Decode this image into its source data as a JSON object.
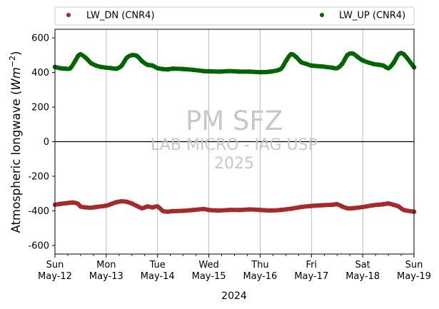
{
  "chart_data": {
    "type": "scatter",
    "ylabel_prefix": "Atmospheric longwave (",
    "ylabel_unit": "W",
    "ylabel_unit2": "m",
    "ylabel_sup": "−2",
    "ylabel_suffix": ")",
    "xlabel": "2024",
    "ylim": [
      -650,
      650
    ],
    "yticks": [
      -600,
      -400,
      -200,
      0,
      200,
      400,
      600
    ],
    "xlim": [
      "2024-05-12",
      "2024-05-19"
    ],
    "xticks": [
      {
        "day": "Sun",
        "date": "May-12"
      },
      {
        "day": "Mon",
        "date": "May-13"
      },
      {
        "day": "Tue",
        "date": "May-14"
      },
      {
        "day": "Wed",
        "date": "May-15"
      },
      {
        "day": "Thu",
        "date": "May-16"
      },
      {
        "day": "Fri",
        "date": "May-17"
      },
      {
        "day": "Sat",
        "date": "May-18"
      },
      {
        "day": "Sun",
        "date": "May-19"
      }
    ],
    "grid": "vertical",
    "zero_line": true,
    "legend_position": "top-outside",
    "watermark": [
      "PM SFZ",
      "LAB MICRO - IAG USP",
      "2025"
    ],
    "series": [
      {
        "name": "LW_DN (CNR4)",
        "color": "#a52a2a",
        "x": [
          0,
          0.1,
          0.25,
          0.35,
          0.45,
          0.5,
          0.6,
          0.7,
          0.8,
          1.0,
          1.1,
          1.2,
          1.3,
          1.4,
          1.5,
          1.6,
          1.7,
          1.8,
          1.9,
          2.0,
          2.1,
          2.2,
          2.3,
          2.5,
          2.7,
          2.9,
          3.0,
          3.2,
          3.4,
          3.6,
          3.8,
          4.0,
          4.2,
          4.4,
          4.6,
          4.8,
          5.0,
          5.2,
          5.4,
          5.5,
          5.6,
          5.7,
          5.8,
          6.0,
          6.2,
          6.3,
          6.4,
          6.5,
          6.6,
          6.7,
          6.8,
          7.0
        ],
        "y": [
          -365,
          -360,
          -355,
          -352,
          -360,
          -375,
          -380,
          -382,
          -378,
          -370,
          -360,
          -350,
          -345,
          -348,
          -358,
          -372,
          -385,
          -375,
          -380,
          -375,
          -400,
          -405,
          -402,
          -400,
          -395,
          -390,
          -395,
          -398,
          -395,
          -395,
          -392,
          -395,
          -398,
          -395,
          -388,
          -378,
          -372,
          -368,
          -365,
          -362,
          -375,
          -385,
          -385,
          -378,
          -368,
          -365,
          -362,
          -358,
          -365,
          -375,
          -395,
          -405
        ]
      },
      {
        "name": "LW_UP (CNR4)",
        "color": "#006400",
        "x": [
          0,
          0.1,
          0.2,
          0.3,
          0.4,
          0.45,
          0.5,
          0.6,
          0.7,
          0.8,
          0.9,
          1.0,
          1.1,
          1.2,
          1.3,
          1.4,
          1.5,
          1.6,
          1.7,
          1.8,
          1.9,
          2.0,
          2.1,
          2.2,
          2.3,
          2.5,
          2.7,
          2.9,
          3.0,
          3.2,
          3.4,
          3.6,
          3.8,
          4.0,
          4.2,
          4.4,
          4.5,
          4.6,
          4.7,
          4.8,
          4.9,
          5.0,
          5.2,
          5.4,
          5.5,
          5.6,
          5.7,
          5.8,
          5.9,
          6.0,
          6.2,
          6.3,
          6.4,
          6.5,
          6.6,
          6.7,
          6.8,
          7.0
        ],
        "y": [
          432,
          425,
          422,
          425,
          470,
          495,
          505,
          485,
          455,
          440,
          432,
          428,
          425,
          422,
          440,
          485,
          500,
          495,
          465,
          445,
          440,
          425,
          420,
          418,
          422,
          420,
          415,
          408,
          407,
          405,
          408,
          405,
          405,
          402,
          405,
          420,
          465,
          505,
          490,
          460,
          450,
          440,
          435,
          428,
          425,
          450,
          500,
          510,
          490,
          470,
          450,
          445,
          440,
          425,
          455,
          505,
          505,
          430
        ]
      }
    ]
  }
}
